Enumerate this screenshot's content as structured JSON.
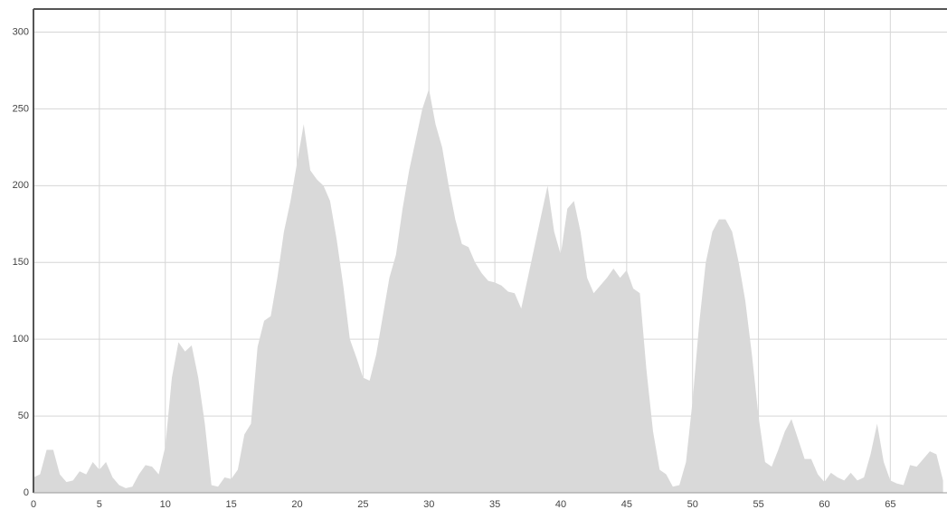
{
  "chart_data": {
    "type": "area",
    "color": "#d9d9d9",
    "grid": true,
    "x": [
      0,
      0.5,
      1,
      1.5,
      2,
      2.5,
      3,
      3.5,
      4,
      4.5,
      5,
      5.5,
      6,
      6.5,
      7,
      7.5,
      8,
      8.5,
      9,
      9.5,
      10,
      10.5,
      11,
      11.5,
      12,
      12.5,
      13,
      13.5,
      14,
      14.5,
      15,
      15.5,
      16,
      16.5,
      17,
      17.5,
      18,
      18.5,
      19,
      19.5,
      20,
      20.5,
      21,
      21.5,
      22,
      22.5,
      23,
      23.5,
      24,
      24.5,
      25,
      25.5,
      26,
      26.5,
      27,
      27.5,
      28,
      28.5,
      29,
      29.5,
      30,
      30.5,
      31,
      31.5,
      32,
      32.5,
      33,
      33.5,
      34,
      34.5,
      35,
      35.5,
      36,
      36.5,
      37,
      37.5,
      38,
      38.5,
      39,
      39.5,
      40,
      40.5,
      41,
      41.5,
      42,
      42.5,
      43,
      43.5,
      44,
      44.5,
      45,
      45.5,
      46,
      46.5,
      47,
      47.5,
      48,
      48.5,
      49,
      49.5,
      50,
      50.5,
      51,
      51.5,
      52,
      52.5,
      53,
      53.5,
      54,
      54.5,
      55,
      55.5,
      56,
      56.5,
      57,
      57.5,
      58,
      58.5,
      59,
      59.5,
      60,
      60.5,
      61,
      61.5,
      62,
      62.5,
      63,
      63.5,
      64,
      64.5,
      65,
      65.5,
      66,
      66.5,
      67,
      67.5,
      68,
      68.5,
      69
    ],
    "values": [
      10,
      12,
      28,
      28,
      12,
      7,
      8,
      14,
      12,
      20,
      15,
      20,
      10,
      5,
      3,
      4,
      12,
      18,
      17,
      12,
      30,
      75,
      98,
      92,
      96,
      75,
      45,
      5,
      4,
      10,
      9,
      15,
      38,
      45,
      95,
      112,
      115,
      140,
      170,
      190,
      215,
      240,
      210,
      204,
      200,
      190,
      165,
      135,
      100,
      88,
      75,
      73,
      90,
      115,
      140,
      155,
      185,
      210,
      230,
      250,
      263,
      240,
      225,
      200,
      178,
      162,
      160,
      150,
      143,
      138,
      137,
      135,
      131,
      130,
      120,
      140,
      160,
      180,
      200,
      170,
      155,
      185,
      190,
      170,
      140,
      130,
      135,
      140,
      146,
      140,
      145,
      133,
      130,
      80,
      40,
      15,
      12,
      4,
      5,
      20,
      60,
      110,
      150,
      170,
      178,
      178,
      170,
      150,
      125,
      90,
      50,
      20,
      17,
      28,
      40,
      48,
      35,
      22,
      22,
      12,
      7,
      13,
      10,
      8,
      13,
      8,
      10,
      25,
      45,
      20,
      8,
      6,
      5,
      18,
      17,
      22,
      27,
      25,
      8
    ],
    "xlim": [
      0,
      69.3
    ],
    "xticks": [
      0,
      5,
      10,
      15,
      20,
      25,
      30,
      35,
      40,
      45,
      50,
      55,
      60,
      65
    ],
    "ylim": [
      0,
      315
    ],
    "yticks": [
      0,
      50,
      100,
      150,
      200,
      250,
      300
    ]
  }
}
